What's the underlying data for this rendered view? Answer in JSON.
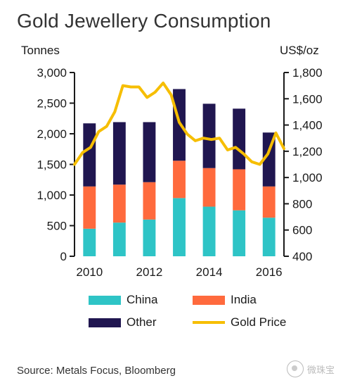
{
  "title": "Gold Jewellery Consumption",
  "source": "Source: Metals Focus, Bloomberg",
  "watermark": "微珠宝",
  "colors": {
    "china": "#2EC4C6",
    "india": "#FF6A3D",
    "other": "#201650",
    "gold_price": "#F6BE00",
    "axis": "#1a1a1a"
  },
  "chart_data": {
    "type": "bar",
    "stacked": true,
    "title": "Gold Jewellery Consumption",
    "categories": [
      "2010",
      "2011",
      "2012",
      "2013",
      "2014",
      "2015",
      "2016"
    ],
    "x_tick_labels": [
      "2010",
      "2012",
      "2014",
      "2016"
    ],
    "ylabel": "Tonnes",
    "ylim": [
      0,
      3000
    ],
    "y_ticks": [
      "0",
      "500",
      "1,000",
      "1,500",
      "2,000",
      "2,500",
      "3,000"
    ],
    "y2label": "US$/oz",
    "y2lim": [
      400,
      1800
    ],
    "y2_ticks": [
      "400",
      "600",
      "800",
      "1,000",
      "1,200",
      "1,400",
      "1,600",
      "1,800"
    ],
    "series": [
      {
        "name": "China",
        "values": [
          450,
          550,
          600,
          950,
          810,
          750,
          630
        ]
      },
      {
        "name": "India",
        "values": [
          690,
          620,
          610,
          610,
          630,
          670,
          510
        ]
      },
      {
        "name": "Other",
        "values": [
          1030,
          1020,
          980,
          1170,
          1050,
          990,
          880
        ]
      }
    ],
    "line_series": {
      "name": "Gold Price",
      "axis": "right",
      "x": [
        2010.0,
        2010.25,
        2010.5,
        2010.75,
        2011.0,
        2011.25,
        2011.5,
        2011.75,
        2012.0,
        2012.25,
        2012.5,
        2012.75,
        2013.0,
        2013.25,
        2013.5,
        2013.75,
        2014.0,
        2014.25,
        2014.5,
        2014.75,
        2015.0,
        2015.25,
        2015.5,
        2015.75,
        2016.0,
        2016.25,
        2016.5
      ],
      "values": [
        1100,
        1190,
        1230,
        1350,
        1390,
        1500,
        1700,
        1690,
        1690,
        1610,
        1650,
        1720,
        1630,
        1420,
        1330,
        1280,
        1300,
        1290,
        1300,
        1210,
        1230,
        1180,
        1120,
        1100,
        1180,
        1340,
        1220
      ]
    },
    "legend": [
      "China",
      "India",
      "Other",
      "Gold Price"
    ],
    "legend_position": "bottom",
    "grid": false
  }
}
